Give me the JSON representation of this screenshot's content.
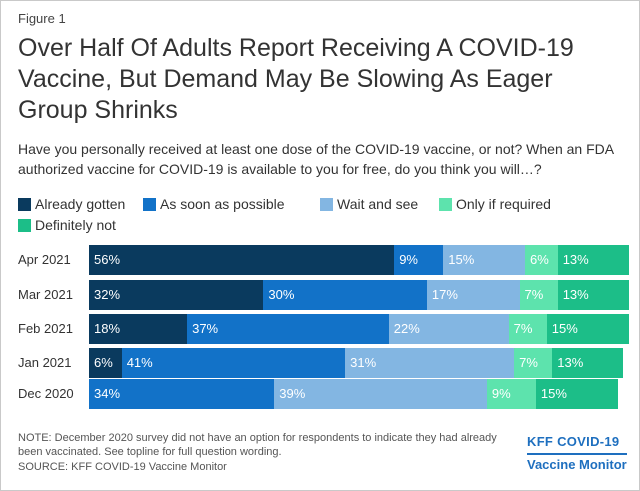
{
  "figure_label": "Figure 1",
  "title": "Over Half Of Adults Report Receiving A COVID-19 Vaccine, But Demand May Be Slowing As Eager Group Shrinks",
  "subtitle": "Have you personally received at least one dose of the COVID-19 vaccine, or not? When an FDA authorized vaccine for COVID-19 is available to you for free, do you think you will…?",
  "note": "NOTE: December 2020 survey did not have an option for respondents to indicate they had already been vaccinated. See topline for full question wording.",
  "source": "SOURCE: KFF COVID-19 Vaccine Monitor",
  "brand": {
    "line1": "KFF COVID-19",
    "line2": "Vaccine Monitor"
  },
  "chart_data": {
    "type": "bar",
    "orientation": "horizontal",
    "stacked": true,
    "categories": [
      "Apr 2021",
      "Mar 2021",
      "Feb 2021",
      "Jan 2021",
      "Dec 2020"
    ],
    "series": [
      {
        "name": "Already gotten",
        "color": "#0a3a5e",
        "values": [
          56,
          32,
          18,
          6,
          null
        ]
      },
      {
        "name": "As soon as possible",
        "color": "#1272c8",
        "values": [
          9,
          30,
          37,
          41,
          34
        ]
      },
      {
        "name": "Wait and see",
        "color": "#83b6e2",
        "values": [
          15,
          17,
          22,
          31,
          39
        ]
      },
      {
        "name": "Only if required",
        "color": "#5de3ad",
        "values": [
          6,
          7,
          7,
          7,
          9
        ]
      },
      {
        "name": "Definitely not",
        "color": "#1cbe88",
        "values": [
          13,
          13,
          15,
          13,
          15
        ]
      }
    ],
    "value_suffix": "%",
    "legend_position": "top"
  }
}
